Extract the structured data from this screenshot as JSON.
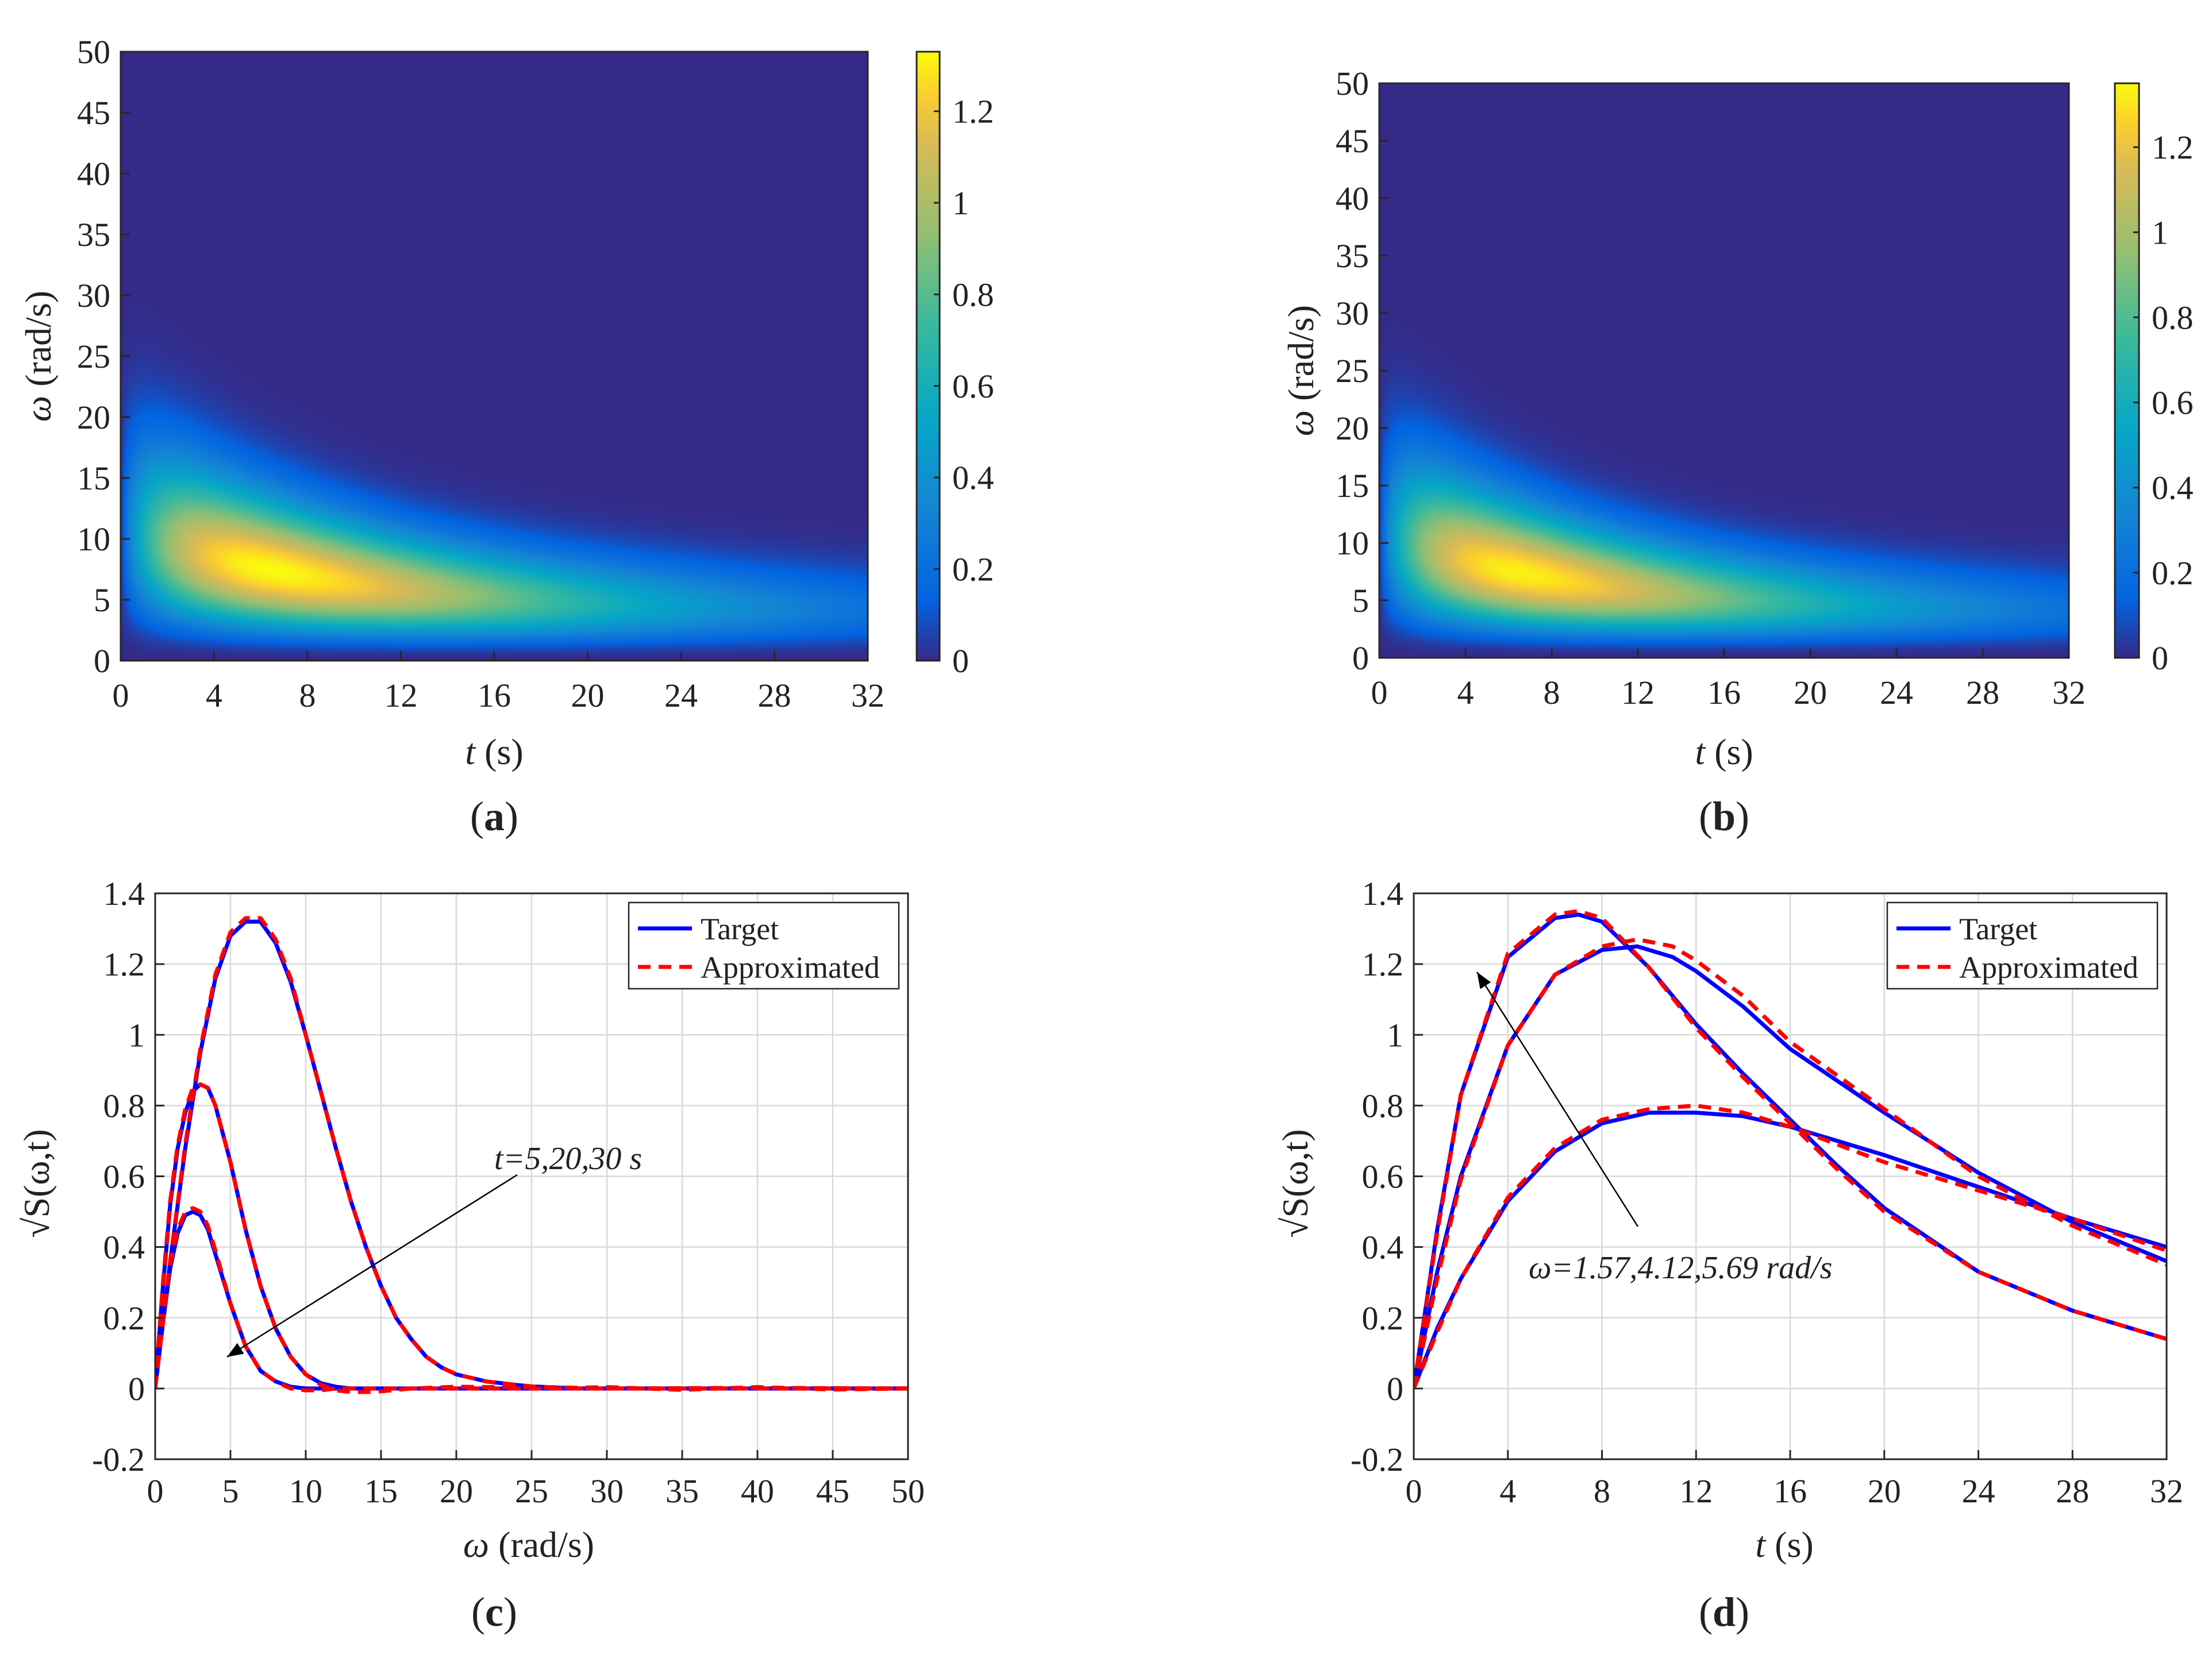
{
  "figure": {
    "panels": [
      {
        "id": "a",
        "label": "(a)",
        "letter": "a"
      },
      {
        "id": "b",
        "label": "(b)",
        "letter": "b"
      },
      {
        "id": "c",
        "label": "(c)",
        "letter": "c"
      },
      {
        "id": "d",
        "label": "(d)",
        "letter": "d"
      }
    ]
  },
  "chart_data": [
    {
      "id": "a",
      "type": "heatmap",
      "title": "",
      "xlabel": "t (s)",
      "xlabel_var": "t",
      "xlabel_unit": " (s)",
      "ylabel": "ω (rad/s)",
      "ylabel_var": "ω",
      "ylabel_unit": " (rad/s)",
      "xlim": [
        0,
        32
      ],
      "ylim": [
        0,
        50
      ],
      "xticks": [
        "0",
        "4",
        "8",
        "12",
        "16",
        "20",
        "24",
        "28",
        "32"
      ],
      "yticks": [
        "0",
        "5",
        "10",
        "15",
        "20",
        "25",
        "30",
        "35",
        "40",
        "45",
        "50"
      ],
      "colorbar": {
        "min": 0,
        "max": 1.33,
        "ticks": [
          "0",
          "0.2",
          "0.4",
          "0.6",
          "0.8",
          "1",
          "1.2"
        ],
        "tick_values": [
          0,
          0.2,
          0.4,
          0.6,
          0.8,
          1.0,
          1.2
        ]
      },
      "peak": {
        "t": 6.5,
        "omega": 5.5,
        "value": 1.33
      },
      "colormap": "parula",
      "description_values": "Target evolutionary spectrum √S(ω,t), ridge decaying from ω≈7 at t≈2 to ω≈3 at t=32"
    },
    {
      "id": "b",
      "type": "heatmap",
      "title": "",
      "xlabel": "t (s)",
      "xlabel_var": "t",
      "xlabel_unit": " (s)",
      "ylabel": "ω (rad/s)",
      "ylabel_var": "ω",
      "ylabel_unit": " (rad/s)",
      "xlim": [
        0,
        32
      ],
      "ylim": [
        0,
        50
      ],
      "xticks": [
        "0",
        "4",
        "8",
        "12",
        "16",
        "20",
        "24",
        "28",
        "32"
      ],
      "yticks": [
        "0",
        "5",
        "10",
        "15",
        "20",
        "25",
        "30",
        "35",
        "40",
        "45",
        "50"
      ],
      "colorbar": {
        "min": 0,
        "max": 1.35,
        "ticks": [
          "0",
          "0.2",
          "0.4",
          "0.6",
          "0.8",
          "1",
          "1.2"
        ],
        "tick_values": [
          0,
          0.2,
          0.4,
          0.6,
          0.8,
          1.0,
          1.2
        ]
      },
      "peak": {
        "t": 6.5,
        "omega": 5.5,
        "value": 1.35
      },
      "colormap": "parula",
      "description_values": "Approximated evolutionary spectrum √S(ω,t)"
    },
    {
      "id": "c",
      "type": "line",
      "title": "",
      "xlabel": "ω (rad/s)",
      "xlabel_var": "ω",
      "xlabel_unit": " (rad/s)",
      "ylabel": "√S(ω,t)",
      "xlim": [
        0,
        50
      ],
      "ylim": [
        -0.2,
        1.4
      ],
      "xticks": [
        0,
        5,
        10,
        15,
        20,
        25,
        30,
        35,
        40,
        45,
        50
      ],
      "yticks": [
        -0.2,
        0,
        0.2,
        0.4,
        0.6,
        0.8,
        1,
        1.2,
        1.4
      ],
      "ytick_labels": [
        "-0.2",
        "0",
        "0.2",
        "0.4",
        "0.6",
        "0.8",
        "1",
        "1.2",
        "1.4"
      ],
      "grid": true,
      "legend": {
        "position": "top-right",
        "entries": [
          "Target",
          "Approximated"
        ]
      },
      "annotation": "t=5,20,30 s",
      "series": [
        {
          "name": "Target",
          "label": "t=5 s",
          "x": [
            0,
            1,
            2,
            3,
            4,
            5,
            6,
            7,
            8,
            9,
            10,
            11,
            12,
            13,
            14,
            15,
            16,
            17,
            18,
            19,
            20,
            21,
            22,
            23,
            24,
            25,
            26,
            27,
            28,
            30,
            35,
            40,
            45,
            50
          ],
          "y": [
            0,
            0.36,
            0.68,
            0.95,
            1.16,
            1.28,
            1.32,
            1.32,
            1.26,
            1.15,
            1.0,
            0.84,
            0.68,
            0.53,
            0.4,
            0.29,
            0.2,
            0.14,
            0.09,
            0.06,
            0.04,
            0.03,
            0.02,
            0.015,
            0.01,
            0.006,
            0.004,
            0.002,
            0.0,
            0,
            0,
            0,
            0,
            0
          ]
        },
        {
          "name": "Target",
          "label": "t=20 s",
          "x": [
            0,
            0.5,
            1,
            1.5,
            2,
            2.5,
            3,
            3.5,
            4,
            5,
            6,
            7,
            8,
            9,
            10,
            11,
            12,
            13,
            14,
            15,
            17,
            20,
            25,
            30,
            40,
            50
          ],
          "y": [
            0,
            0.28,
            0.52,
            0.68,
            0.78,
            0.84,
            0.86,
            0.85,
            0.8,
            0.64,
            0.45,
            0.29,
            0.17,
            0.09,
            0.04,
            0.015,
            0.005,
            0,
            0,
            0,
            0,
            0,
            0,
            0,
            0,
            0
          ]
        },
        {
          "name": "Target",
          "label": "t=30 s",
          "x": [
            0,
            0.5,
            1,
            1.5,
            2,
            2.5,
            3,
            3.5,
            4,
            5,
            6,
            7,
            8,
            9,
            10,
            11,
            12,
            14,
            20,
            30,
            40,
            50
          ],
          "y": [
            0,
            0.18,
            0.34,
            0.44,
            0.49,
            0.5,
            0.49,
            0.45,
            0.38,
            0.24,
            0.12,
            0.05,
            0.02,
            0.005,
            0,
            0,
            0,
            0,
            0,
            0,
            0,
            0
          ]
        },
        {
          "name": "Approximated",
          "label": "t=5 s",
          "x": [
            0,
            1,
            2,
            3,
            4,
            5,
            6,
            7,
            8,
            9,
            10,
            11,
            12,
            13,
            14,
            15,
            16,
            17,
            18,
            19,
            20,
            21,
            22,
            23,
            24,
            25,
            26,
            27,
            28,
            30,
            35,
            40,
            45,
            50
          ],
          "y": [
            0,
            0.36,
            0.69,
            0.96,
            1.17,
            1.29,
            1.33,
            1.33,
            1.27,
            1.16,
            1.0,
            0.84,
            0.68,
            0.53,
            0.4,
            0.29,
            0.2,
            0.14,
            0.09,
            0.06,
            0.04,
            0.03,
            0.02,
            0.015,
            0.01,
            0.006,
            0.004,
            0.003,
            0.002,
            0.004,
            -0.004,
            0.004,
            -0.003,
            0.0
          ]
        },
        {
          "name": "Approximated",
          "label": "t=20 s",
          "x": [
            0,
            0.5,
            1,
            1.5,
            2,
            2.5,
            3,
            3.5,
            4,
            5,
            6,
            7,
            8,
            9,
            10,
            11,
            12,
            13,
            14,
            15,
            17,
            20,
            25,
            30,
            40,
            50
          ],
          "y": [
            0,
            0.29,
            0.53,
            0.69,
            0.79,
            0.85,
            0.86,
            0.85,
            0.8,
            0.64,
            0.45,
            0.29,
            0.17,
            0.09,
            0.04,
            0.01,
            -0.005,
            -0.01,
            -0.01,
            -0.008,
            0.0,
            0.005,
            0.003,
            0.0,
            0.002,
            0.0
          ]
        },
        {
          "name": "Approximated",
          "label": "t=30 s",
          "x": [
            0,
            0.5,
            1,
            1.5,
            2,
            2.5,
            3,
            3.5,
            4,
            5,
            6,
            7,
            8,
            9,
            10,
            11,
            12,
            14,
            20,
            30,
            40,
            50
          ],
          "y": [
            0,
            0.19,
            0.35,
            0.45,
            0.5,
            0.51,
            0.5,
            0.46,
            0.39,
            0.24,
            0.12,
            0.05,
            0.02,
            0.0,
            -0.005,
            -0.005,
            0.0,
            0.0,
            0.0,
            0.0,
            0.0,
            0.0
          ]
        }
      ]
    },
    {
      "id": "d",
      "type": "line",
      "title": "",
      "xlabel": "t (s)",
      "xlabel_var": "t",
      "xlabel_unit": " (s)",
      "ylabel": "√S(ω,t)",
      "xlim": [
        0,
        32
      ],
      "ylim": [
        -0.2,
        1.4
      ],
      "xticks": [
        0,
        4,
        8,
        12,
        16,
        20,
        24,
        28,
        32
      ],
      "yticks": [
        -0.2,
        0,
        0.2,
        0.4,
        0.6,
        0.8,
        1,
        1.2,
        1.4
      ],
      "ytick_labels": [
        "-0.2",
        "0",
        "0.2",
        "0.4",
        "0.6",
        "0.8",
        "1",
        "1.2",
        "1.4"
      ],
      "grid": true,
      "legend": {
        "position": "top-right",
        "entries": [
          "Target",
          "Approximated"
        ]
      },
      "annotation": "ω=1.57,4.12,5.69 rad/s",
      "series": [
        {
          "name": "Target",
          "label": "ω=1.57 rad/s",
          "x": [
            0,
            1,
            2,
            4,
            6,
            8,
            10,
            12,
            14,
            16,
            18,
            20,
            24,
            28,
            32
          ],
          "y": [
            0,
            0.17,
            0.31,
            0.53,
            0.67,
            0.75,
            0.78,
            0.78,
            0.77,
            0.74,
            0.7,
            0.66,
            0.57,
            0.48,
            0.4
          ]
        },
        {
          "name": "Target",
          "label": "ω=4.12 rad/s",
          "x": [
            0,
            1,
            2,
            4,
            6,
            8,
            9.5,
            11,
            12,
            14,
            16,
            20,
            24,
            28,
            32
          ],
          "y": [
            0,
            0.33,
            0.6,
            0.97,
            1.17,
            1.24,
            1.25,
            1.22,
            1.18,
            1.08,
            0.96,
            0.78,
            0.61,
            0.47,
            0.36
          ]
        },
        {
          "name": "Target",
          "label": "ω=5.69 rad/s",
          "x": [
            0,
            1,
            2,
            4,
            6,
            7,
            8,
            10,
            12,
            14,
            16,
            18,
            20,
            24,
            28,
            32
          ],
          "y": [
            0,
            0.45,
            0.83,
            1.22,
            1.33,
            1.34,
            1.32,
            1.19,
            1.03,
            0.89,
            0.76,
            0.63,
            0.51,
            0.33,
            0.22,
            0.14
          ]
        },
        {
          "name": "Approximated",
          "label": "ω=1.57 rad/s",
          "x": [
            0,
            1,
            2,
            4,
            6,
            8,
            10,
            12,
            14,
            16,
            18,
            20,
            24,
            28,
            32
          ],
          "y": [
            0,
            0.16,
            0.31,
            0.54,
            0.68,
            0.76,
            0.79,
            0.8,
            0.78,
            0.74,
            0.69,
            0.64,
            0.56,
            0.48,
            0.39
          ]
        },
        {
          "name": "Approximated",
          "label": "ω=4.12 rad/s",
          "x": [
            0,
            1,
            2,
            4,
            6,
            8,
            9.5,
            11,
            12,
            14,
            16,
            20,
            24,
            28,
            32
          ],
          "y": [
            0,
            0.31,
            0.59,
            0.97,
            1.17,
            1.25,
            1.27,
            1.25,
            1.21,
            1.11,
            0.98,
            0.79,
            0.6,
            0.46,
            0.35
          ]
        },
        {
          "name": "Approximated",
          "label": "ω=5.69 rad/s",
          "x": [
            0,
            1,
            2,
            4,
            6,
            7,
            8,
            10,
            12,
            14,
            16,
            18,
            20,
            24,
            28,
            32
          ],
          "y": [
            0,
            0.44,
            0.83,
            1.23,
            1.34,
            1.35,
            1.33,
            1.19,
            1.02,
            0.88,
            0.75,
            0.62,
            0.5,
            0.33,
            0.22,
            0.14
          ]
        }
      ]
    }
  ],
  "colors": {
    "target": "#0000ff",
    "approximated": "#ff0000",
    "grid": "#d9d9d9",
    "axis": "#262626"
  }
}
